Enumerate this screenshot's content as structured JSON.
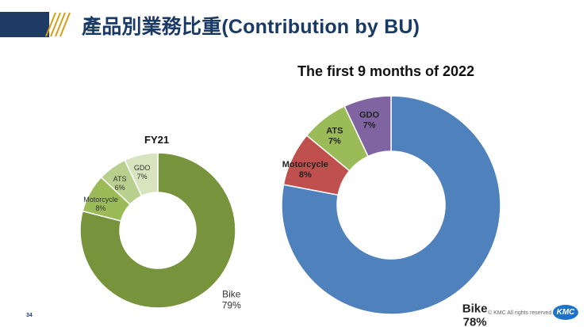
{
  "page": {
    "title": "產品別業務比重(Contribution by BU)",
    "page_number": "34",
    "copyright": "© KMC All rights reserved",
    "logo_text": "KMC"
  },
  "chart_data": [
    {
      "type": "pie",
      "donut": true,
      "title": "FY21",
      "categories": [
        "Bike",
        "Motorcycle",
        "ATS",
        "GDO"
      ],
      "values": [
        79,
        8,
        6,
        7
      ],
      "labels": [
        "79%",
        "8%",
        "6%",
        "7%"
      ],
      "colors": [
        "#77933c",
        "#9bbb59",
        "#b9cf8e",
        "#d7e4bd"
      ],
      "label_color": "#333333"
    },
    {
      "type": "pie",
      "donut": true,
      "title": "The first 9 months of 2022",
      "categories": [
        "Bike",
        "Motorcycle",
        "ATS",
        "GDO"
      ],
      "values": [
        78,
        8,
        7,
        7
      ],
      "labels": [
        "78%",
        "8%",
        "7%",
        "7%"
      ],
      "colors": [
        "#4f81bd",
        "#c0504d",
        "#9bbb59",
        "#8064a2"
      ],
      "label_color": "#222222"
    }
  ]
}
